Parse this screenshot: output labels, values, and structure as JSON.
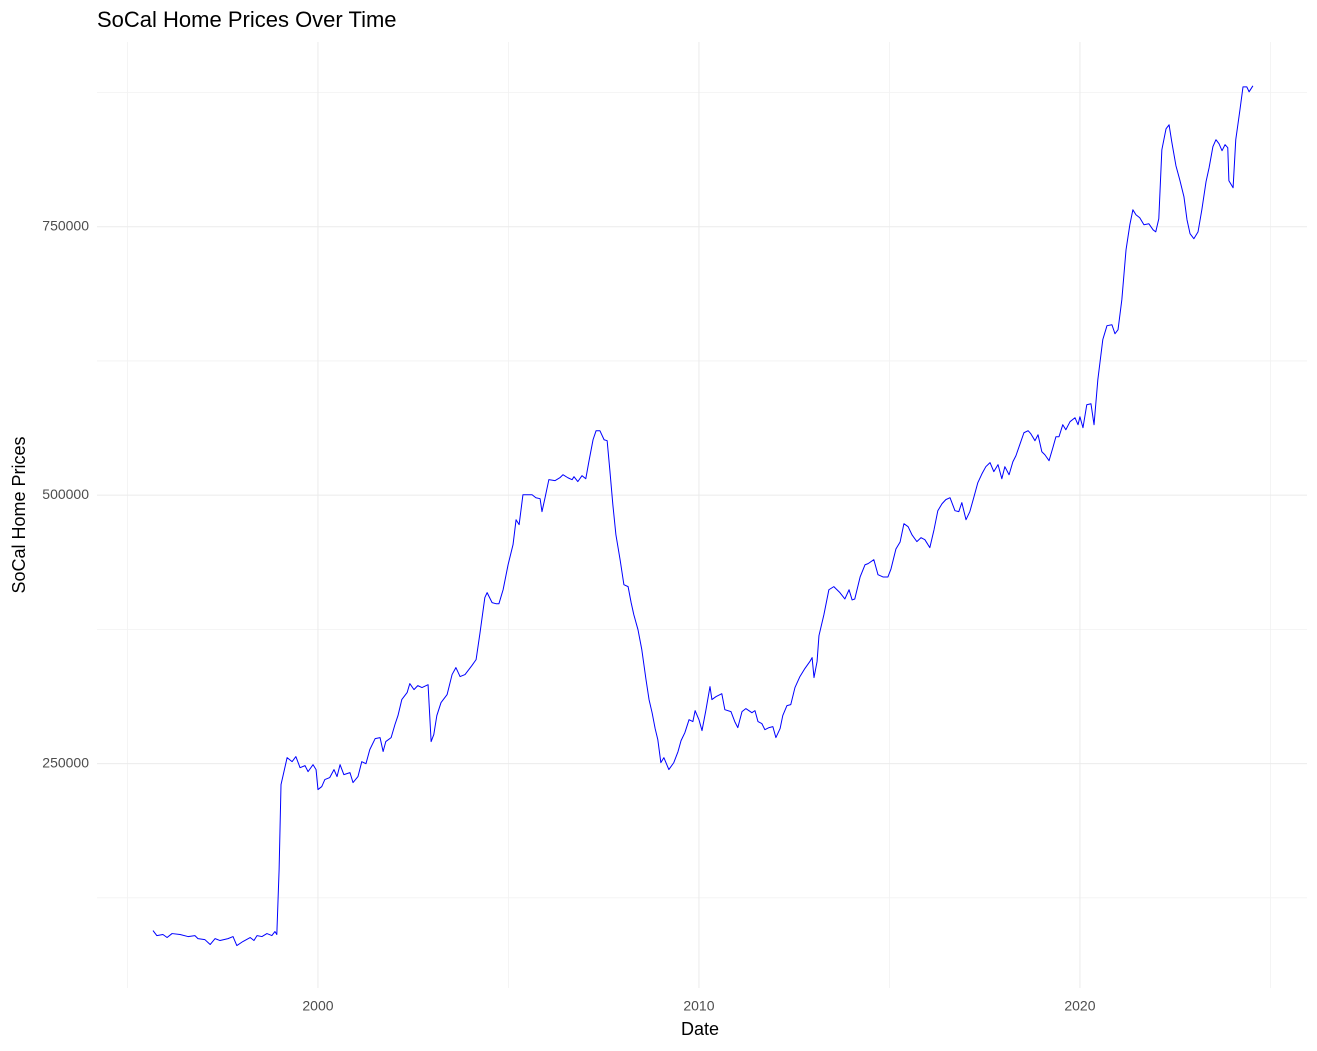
{
  "chart_data": {
    "type": "line",
    "title": "SoCal Home Prices Over Time",
    "x_label": "Date",
    "y_label": "SoCal Home Prices",
    "xlim": [
      1994.2,
      2025.96
    ],
    "ylim": [
      41000,
      922000
    ],
    "xticks": [
      2000,
      2010,
      2020
    ],
    "xminor": [
      1995,
      2005,
      2015,
      2025
    ],
    "yticks": [
      250000,
      500000,
      750000
    ],
    "yminor": [
      125000,
      375000,
      625000,
      875000
    ],
    "grid": true,
    "x": [
      1995.67,
      1995.77,
      1995.93,
      1996.04,
      1996.17,
      1996.38,
      1996.59,
      1996.77,
      1996.85,
      1997.03,
      1997.17,
      1997.3,
      1997.43,
      1997.64,
      1997.77,
      1997.87,
      1998.03,
      1998.22,
      1998.32,
      1998.4,
      1998.53,
      1998.66,
      1998.79,
      1998.87,
      1998.92,
      1998.98,
      1999.03,
      1999.19,
      1999.32,
      1999.42,
      1999.53,
      1999.66,
      1999.74,
      1999.87,
      1999.95,
      2000.0,
      2000.1,
      2000.18,
      2000.31,
      2000.42,
      2000.5,
      2000.58,
      2000.68,
      2000.84,
      2000.92,
      2001.05,
      2001.15,
      2001.26,
      2001.36,
      2001.5,
      2001.63,
      2001.71,
      2001.78,
      2001.92,
      2002.02,
      2002.1,
      2002.2,
      2002.34,
      2002.41,
      2002.52,
      2002.62,
      2002.73,
      2002.89,
      2002.97,
      2003.04,
      2003.12,
      2003.23,
      2003.39,
      2003.52,
      2003.62,
      2003.73,
      2003.86,
      2004.04,
      2004.15,
      2004.25,
      2004.38,
      2004.44,
      2004.57,
      2004.67,
      2004.75,
      2004.86,
      2004.99,
      2005.12,
      2005.2,
      2005.28,
      2005.38,
      2005.62,
      2005.72,
      2005.83,
      2005.88,
      2005.96,
      2006.06,
      2006.22,
      2006.35,
      2006.43,
      2006.56,
      2006.67,
      2006.72,
      2006.82,
      2006.93,
      2007.03,
      2007.11,
      2007.22,
      2007.3,
      2007.4,
      2007.51,
      2007.59,
      2007.66,
      2007.74,
      2007.82,
      2007.93,
      2008.03,
      2008.14,
      2008.22,
      2008.29,
      2008.4,
      2008.5,
      2008.61,
      2008.69,
      2008.77,
      2008.85,
      2008.92,
      2009.0,
      2009.08,
      2009.21,
      2009.34,
      2009.45,
      2009.53,
      2009.63,
      2009.74,
      2009.84,
      2009.9,
      2010.0,
      2010.08,
      2010.18,
      2010.29,
      2010.34,
      2010.45,
      2010.6,
      2010.68,
      2010.84,
      2010.94,
      2011.02,
      2011.13,
      2011.23,
      2011.39,
      2011.47,
      2011.55,
      2011.65,
      2011.73,
      2011.84,
      2011.94,
      2012.02,
      2012.13,
      2012.2,
      2012.31,
      2012.41,
      2012.52,
      2012.65,
      2012.78,
      2012.91,
      2012.97,
      2013.02,
      2013.1,
      2013.15,
      2013.28,
      2013.41,
      2013.54,
      2013.7,
      2013.83,
      2013.94,
      2014.02,
      2014.09,
      2014.23,
      2014.36,
      2014.44,
      2014.59,
      2014.7,
      2014.83,
      2014.96,
      2015.04,
      2015.17,
      2015.28,
      2015.38,
      2015.49,
      2015.59,
      2015.72,
      2015.83,
      2015.93,
      2016.06,
      2016.17,
      2016.27,
      2016.38,
      2016.48,
      2016.59,
      2016.72,
      2016.82,
      2016.9,
      2017.01,
      2017.11,
      2017.22,
      2017.32,
      2017.43,
      2017.53,
      2017.64,
      2017.74,
      2017.85,
      2017.95,
      2018.03,
      2018.14,
      2018.24,
      2018.32,
      2018.43,
      2018.53,
      2018.64,
      2018.71,
      2018.82,
      2018.9,
      2019.0,
      2019.08,
      2019.19,
      2019.29,
      2019.37,
      2019.45,
      2019.55,
      2019.63,
      2019.74,
      2019.87,
      2019.95,
      2020.0,
      2020.08,
      2020.18,
      2020.29,
      2020.37,
      2020.47,
      2020.6,
      2020.71,
      2020.84,
      2020.92,
      2021.0,
      2021.1,
      2021.21,
      2021.31,
      2021.39,
      2021.47,
      2021.57,
      2021.68,
      2021.81,
      2021.92,
      2021.99,
      2022.07,
      2022.15,
      2022.26,
      2022.34,
      2022.41,
      2022.52,
      2022.62,
      2022.73,
      2022.81,
      2022.89,
      2022.99,
      2023.1,
      2023.2,
      2023.31,
      2023.39,
      2023.49,
      2023.57,
      2023.65,
      2023.73,
      2023.81,
      2023.88,
      2023.91,
      2024.02,
      2024.09,
      2024.2,
      2024.28,
      2024.38,
      2024.44,
      2024.54
    ],
    "series": [
      {
        "color": "#0000ff",
        "values": [
          94500,
          89800,
          90800,
          88000,
          91700,
          90800,
          88900,
          89800,
          87000,
          86100,
          81500,
          87000,
          85200,
          87000,
          88900,
          80500,
          84300,
          88000,
          85200,
          89800,
          88900,
          91700,
          89800,
          93600,
          90800,
          151300,
          230400,
          255500,
          251800,
          256500,
          246200,
          248100,
          242500,
          249000,
          244400,
          225800,
          228600,
          235100,
          237000,
          244400,
          237900,
          249000,
          239700,
          241600,
          232300,
          237900,
          251800,
          249900,
          263000,
          273200,
          274200,
          261200,
          270500,
          274200,
          286300,
          294700,
          309600,
          316100,
          324500,
          318900,
          322600,
          320800,
          323500,
          270500,
          277000,
          294700,
          306800,
          314300,
          332900,
          339400,
          331000,
          332900,
          341300,
          346800,
          371000,
          404600,
          409200,
          399900,
          398900,
          398900,
          412000,
          435200,
          453900,
          477100,
          472500,
          500400,
          500400,
          497600,
          496700,
          484600,
          497600,
          514400,
          513500,
          516200,
          519000,
          516200,
          514400,
          517200,
          512600,
          518100,
          515300,
          531100,
          551600,
          560000,
          560000,
          551600,
          550700,
          523700,
          491100,
          463200,
          439900,
          416600,
          414800,
          399900,
          388700,
          374700,
          356100,
          328200,
          309600,
          297400,
          282600,
          272300,
          250900,
          255500,
          244400,
          250900,
          261100,
          271400,
          278800,
          290900,
          289100,
          299300,
          290900,
          280700,
          299300,
          321700,
          309600,
          312400,
          315100,
          300200,
          298400,
          289100,
          283500,
          298400,
          301200,
          297400,
          299300,
          289100,
          287300,
          281600,
          283500,
          284400,
          274200,
          282600,
          294700,
          304000,
          304900,
          320800,
          331000,
          338500,
          345000,
          348700,
          330100,
          345000,
          369100,
          388700,
          411900,
          414800,
          409200,
          403300,
          411900,
          402400,
          403300,
          423800,
          435200,
          436200,
          439900,
          425900,
          423800,
          423800,
          431200,
          449800,
          456400,
          473400,
          470600,
          463200,
          456700,
          460400,
          458500,
          451100,
          467800,
          485500,
          492000,
          495800,
          497600,
          485500,
          484600,
          493000,
          477100,
          484600,
          498600,
          511600,
          520000,
          526500,
          530300,
          521900,
          528400,
          515300,
          526500,
          519000,
          531100,
          536700,
          547900,
          558100,
          560000,
          557200,
          550700,
          556200,
          540400,
          537600,
          532100,
          544200,
          554400,
          554400,
          565600,
          560900,
          568400,
          572100,
          565600,
          573000,
          562800,
          584200,
          585100,
          565600,
          607500,
          644800,
          657800,
          658700,
          650300,
          654100,
          682000,
          728500,
          751800,
          765800,
          761100,
          758300,
          751800,
          752700,
          747100,
          745200,
          757400,
          821600,
          841200,
          844900,
          829100,
          806800,
          793700,
          777900,
          756500,
          743500,
          738800,
          745200,
          765800,
          791900,
          804900,
          824500,
          831000,
          827300,
          820800,
          826400,
          823600,
          792800,
          786300,
          831000,
          858800,
          880200,
          880200,
          875600,
          881200
        ]
      }
    ]
  }
}
